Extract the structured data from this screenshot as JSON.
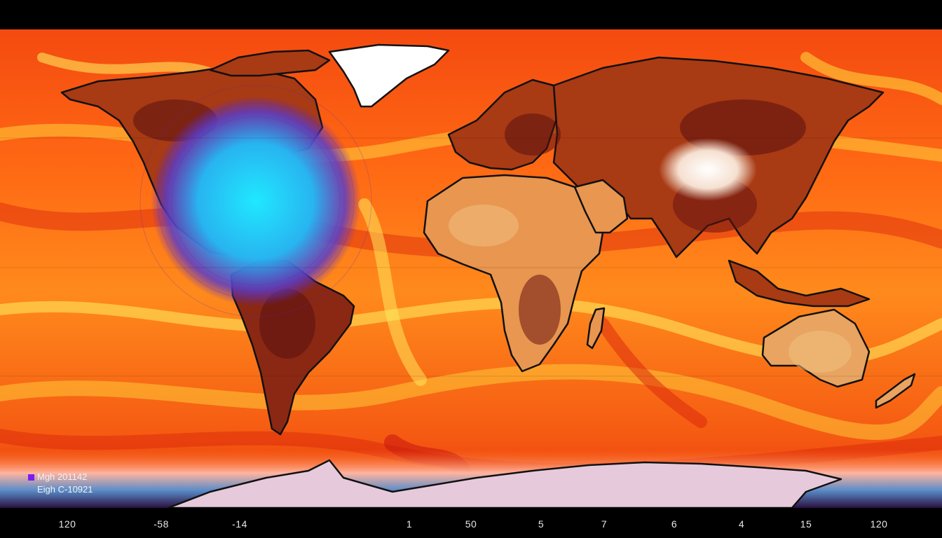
{
  "map": {
    "colors": {
      "ocean_base": "#f44a10",
      "ocean_hot": "#d9240c",
      "ocean_warm": "#ff8c1a",
      "ocean_bright": "#ffd23c",
      "land": "#a83a14",
      "land_dark": "#5a1010",
      "land_light": "#f0b060",
      "ice": "#ffffff",
      "antarctica": "#e6cadb",
      "cold_anomaly": "#1ec8f0",
      "cold_anomaly_edge": "#5a28c8",
      "coastline": "#111111"
    }
  },
  "legend": [
    {
      "label": "Mgh 201142",
      "swatch": "#7a1ef0"
    },
    {
      "label": "Eigh C-10921",
      "swatch": null
    }
  ],
  "x_axis_ticks": [
    "120",
    "-58",
    "-14",
    "1",
    "50",
    "5",
    "7",
    "6",
    "4",
    "15",
    "120"
  ]
}
